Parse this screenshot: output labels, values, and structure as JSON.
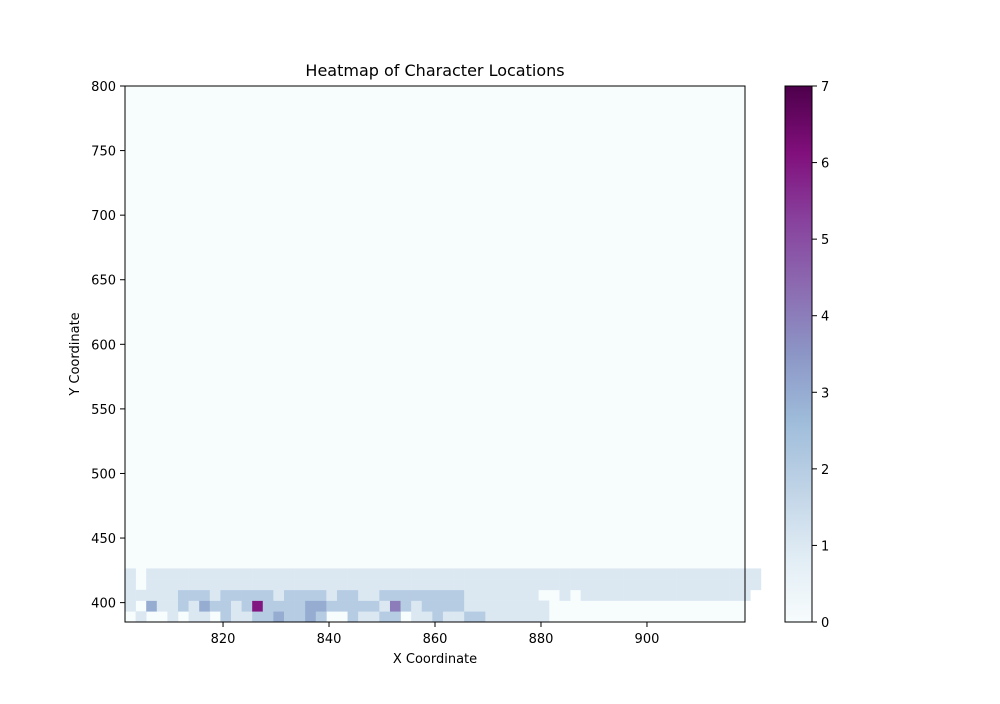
{
  "chart_data": {
    "type": "heatmap",
    "title": "Heatmap of Character Locations",
    "xlabel": "X Coordinate",
    "ylabel": "Y Coordinate",
    "xlim": [
      801.5,
      918.5
    ],
    "ylim": [
      385,
      800
    ],
    "x_ticks": [
      820,
      840,
      860,
      880,
      900
    ],
    "y_ticks": [
      400,
      450,
      500,
      550,
      600,
      650,
      700,
      750,
      800
    ],
    "x_tick_labels": [
      "820",
      "840",
      "860",
      "880",
      "900"
    ],
    "y_tick_labels": [
      "400",
      "450",
      "500",
      "550",
      "600",
      "650",
      "700",
      "750",
      "800"
    ],
    "colorbar": {
      "min": 0,
      "max": 7,
      "ticks": [
        0,
        1,
        2,
        3,
        4,
        5,
        6,
        7
      ],
      "tick_labels": [
        "0",
        "1",
        "2",
        "3",
        "4",
        "5",
        "6",
        "7"
      ],
      "colormap": "BuPu",
      "colors": [
        "#f7fcfd",
        "#e0ecf4",
        "#bfd3e6",
        "#9ebcda",
        "#8c96c6",
        "#8c6bb1",
        "#88419d",
        "#810f7c",
        "#4d004b"
      ]
    },
    "grid": false,
    "bins": {
      "x_start": 801.5,
      "x_step": 2,
      "y_start": 385,
      "y_step": 8.3,
      "nx": 60,
      "ny": 50
    },
    "cells": [
      [
        1,
        0,
        1
      ],
      [
        4,
        0,
        1
      ],
      [
        6,
        0,
        1
      ],
      [
        7,
        0,
        1
      ],
      [
        9,
        0,
        2
      ],
      [
        10,
        0,
        1
      ],
      [
        11,
        0,
        1
      ],
      [
        12,
        0,
        2
      ],
      [
        13,
        0,
        2
      ],
      [
        14,
        0,
        3
      ],
      [
        15,
        0,
        2
      ],
      [
        16,
        0,
        2
      ],
      [
        17,
        0,
        3
      ],
      [
        18,
        0,
        2
      ],
      [
        21,
        0,
        2
      ],
      [
        22,
        0,
        1
      ],
      [
        23,
        0,
        1
      ],
      [
        24,
        0,
        2
      ],
      [
        25,
        0,
        2
      ],
      [
        27,
        0,
        1
      ],
      [
        28,
        0,
        1
      ],
      [
        29,
        0,
        2
      ],
      [
        30,
        0,
        1
      ],
      [
        31,
        0,
        1
      ],
      [
        32,
        0,
        2
      ],
      [
        33,
        0,
        2
      ],
      [
        34,
        0,
        1
      ],
      [
        35,
        0,
        1
      ],
      [
        36,
        0,
        1
      ],
      [
        37,
        0,
        1
      ],
      [
        38,
        0,
        1
      ],
      [
        39,
        0,
        1
      ],
      [
        0,
        1,
        1
      ],
      [
        2,
        1,
        3
      ],
      [
        3,
        1,
        1
      ],
      [
        4,
        1,
        1
      ],
      [
        5,
        1,
        2
      ],
      [
        6,
        1,
        1
      ],
      [
        7,
        1,
        3
      ],
      [
        8,
        1,
        2
      ],
      [
        9,
        1,
        2
      ],
      [
        10,
        1,
        1
      ],
      [
        11,
        1,
        2
      ],
      [
        12,
        1,
        6
      ],
      [
        13,
        1,
        2
      ],
      [
        14,
        1,
        2
      ],
      [
        15,
        1,
        2
      ],
      [
        16,
        1,
        2
      ],
      [
        17,
        1,
        3
      ],
      [
        18,
        1,
        3
      ],
      [
        19,
        1,
        2
      ],
      [
        20,
        1,
        2
      ],
      [
        21,
        1,
        2
      ],
      [
        22,
        1,
        2
      ],
      [
        23,
        1,
        2
      ],
      [
        24,
        1,
        1
      ],
      [
        25,
        1,
        4
      ],
      [
        26,
        1,
        2
      ],
      [
        27,
        1,
        1
      ],
      [
        28,
        1,
        2
      ],
      [
        29,
        1,
        2
      ],
      [
        30,
        1,
        2
      ],
      [
        31,
        1,
        2
      ],
      [
        32,
        1,
        1
      ],
      [
        33,
        1,
        1
      ],
      [
        34,
        1,
        1
      ],
      [
        35,
        1,
        1
      ],
      [
        36,
        1,
        1
      ],
      [
        37,
        1,
        1
      ],
      [
        38,
        1,
        1
      ],
      [
        39,
        1,
        1
      ],
      [
        0,
        2,
        1
      ],
      [
        1,
        2,
        1
      ],
      [
        2,
        2,
        1
      ],
      [
        3,
        2,
        1
      ],
      [
        4,
        2,
        1
      ],
      [
        5,
        2,
        2
      ],
      [
        6,
        2,
        2
      ],
      [
        7,
        2,
        2
      ],
      [
        8,
        2,
        1
      ],
      [
        9,
        2,
        2
      ],
      [
        10,
        2,
        2
      ],
      [
        11,
        2,
        2
      ],
      [
        12,
        2,
        2
      ],
      [
        13,
        2,
        2
      ],
      [
        14,
        2,
        1
      ],
      [
        15,
        2,
        2
      ],
      [
        16,
        2,
        2
      ],
      [
        17,
        2,
        2
      ],
      [
        18,
        2,
        2
      ],
      [
        19,
        2,
        1
      ],
      [
        20,
        2,
        2
      ],
      [
        21,
        2,
        2
      ],
      [
        22,
        2,
        1
      ],
      [
        23,
        2,
        1
      ],
      [
        24,
        2,
        2
      ],
      [
        25,
        2,
        2
      ],
      [
        26,
        2,
        2
      ],
      [
        27,
        2,
        2
      ],
      [
        28,
        2,
        2
      ],
      [
        29,
        2,
        2
      ],
      [
        30,
        2,
        2
      ],
      [
        31,
        2,
        2
      ],
      [
        32,
        2,
        1
      ],
      [
        33,
        2,
        1
      ],
      [
        34,
        2,
        1
      ],
      [
        35,
        2,
        1
      ],
      [
        36,
        2,
        1
      ],
      [
        37,
        2,
        1
      ],
      [
        38,
        2,
        1
      ],
      [
        41,
        2,
        1
      ],
      [
        43,
        2,
        1
      ],
      [
        44,
        2,
        1
      ],
      [
        45,
        2,
        1
      ],
      [
        46,
        2,
        1
      ],
      [
        47,
        2,
        1
      ],
      [
        48,
        2,
        1
      ],
      [
        49,
        2,
        1
      ],
      [
        50,
        2,
        1
      ],
      [
        51,
        2,
        1
      ],
      [
        52,
        2,
        1
      ],
      [
        53,
        2,
        1
      ],
      [
        54,
        2,
        1
      ],
      [
        55,
        2,
        1
      ],
      [
        56,
        2,
        1
      ],
      [
        57,
        2,
        1
      ],
      [
        58,
        2,
        1
      ],
      [
        0,
        3,
        1
      ],
      [
        2,
        3,
        1
      ],
      [
        3,
        3,
        1
      ],
      [
        4,
        3,
        1
      ],
      [
        5,
        3,
        1
      ],
      [
        6,
        3,
        1
      ],
      [
        7,
        3,
        1
      ],
      [
        8,
        3,
        1
      ],
      [
        9,
        3,
        1
      ],
      [
        10,
        3,
        1
      ],
      [
        11,
        3,
        1
      ],
      [
        12,
        3,
        1
      ],
      [
        13,
        3,
        1
      ],
      [
        14,
        3,
        1
      ],
      [
        15,
        3,
        1
      ],
      [
        16,
        3,
        1
      ],
      [
        17,
        3,
        1
      ],
      [
        18,
        3,
        1
      ],
      [
        19,
        3,
        1
      ],
      [
        20,
        3,
        1
      ],
      [
        21,
        3,
        1
      ],
      [
        22,
        3,
        1
      ],
      [
        23,
        3,
        1
      ],
      [
        24,
        3,
        1
      ],
      [
        25,
        3,
        1
      ],
      [
        26,
        3,
        1
      ],
      [
        27,
        3,
        1
      ],
      [
        28,
        3,
        1
      ],
      [
        29,
        3,
        1
      ],
      [
        30,
        3,
        1
      ],
      [
        31,
        3,
        1
      ],
      [
        32,
        3,
        1
      ],
      [
        33,
        3,
        1
      ],
      [
        34,
        3,
        1
      ],
      [
        35,
        3,
        1
      ],
      [
        36,
        3,
        1
      ],
      [
        37,
        3,
        1
      ],
      [
        38,
        3,
        1
      ],
      [
        39,
        3,
        1
      ],
      [
        40,
        3,
        1
      ],
      [
        41,
        3,
        1
      ],
      [
        42,
        3,
        1
      ],
      [
        43,
        3,
        1
      ],
      [
        44,
        3,
        1
      ],
      [
        45,
        3,
        1
      ],
      [
        46,
        3,
        1
      ],
      [
        47,
        3,
        1
      ],
      [
        48,
        3,
        1
      ],
      [
        49,
        3,
        1
      ],
      [
        50,
        3,
        1
      ],
      [
        51,
        3,
        1
      ],
      [
        52,
        3,
        1
      ],
      [
        53,
        3,
        1
      ],
      [
        54,
        3,
        1
      ],
      [
        55,
        3,
        1
      ],
      [
        56,
        3,
        1
      ],
      [
        57,
        3,
        1
      ],
      [
        58,
        3,
        1
      ],
      [
        59,
        3,
        1
      ],
      [
        0,
        4,
        1
      ],
      [
        2,
        4,
        1
      ],
      [
        3,
        4,
        1
      ],
      [
        4,
        4,
        1
      ],
      [
        5,
        4,
        1
      ],
      [
        6,
        4,
        1
      ],
      [
        7,
        4,
        1
      ],
      [
        8,
        4,
        1
      ],
      [
        9,
        4,
        1
      ],
      [
        10,
        4,
        1
      ],
      [
        11,
        4,
        1
      ],
      [
        12,
        4,
        1
      ],
      [
        13,
        4,
        1
      ],
      [
        14,
        4,
        1
      ],
      [
        15,
        4,
        1
      ],
      [
        16,
        4,
        1
      ],
      [
        17,
        4,
        1
      ],
      [
        18,
        4,
        1
      ],
      [
        19,
        4,
        1
      ],
      [
        20,
        4,
        1
      ],
      [
        21,
        4,
        1
      ],
      [
        22,
        4,
        1
      ],
      [
        23,
        4,
        1
      ],
      [
        24,
        4,
        1
      ],
      [
        25,
        4,
        1
      ],
      [
        26,
        4,
        1
      ],
      [
        27,
        4,
        1
      ],
      [
        28,
        4,
        1
      ],
      [
        29,
        4,
        1
      ],
      [
        30,
        4,
        1
      ],
      [
        31,
        4,
        1
      ],
      [
        32,
        4,
        1
      ],
      [
        33,
        4,
        1
      ],
      [
        34,
        4,
        1
      ],
      [
        35,
        4,
        1
      ],
      [
        36,
        4,
        1
      ],
      [
        37,
        4,
        1
      ],
      [
        38,
        4,
        1
      ],
      [
        39,
        4,
        1
      ],
      [
        40,
        4,
        1
      ],
      [
        41,
        4,
        1
      ],
      [
        42,
        4,
        1
      ],
      [
        43,
        4,
        1
      ],
      [
        44,
        4,
        1
      ],
      [
        45,
        4,
        1
      ],
      [
        46,
        4,
        1
      ],
      [
        47,
        4,
        1
      ],
      [
        48,
        4,
        1
      ],
      [
        49,
        4,
        1
      ],
      [
        50,
        4,
        1
      ],
      [
        51,
        4,
        1
      ],
      [
        52,
        4,
        1
      ],
      [
        53,
        4,
        1
      ],
      [
        54,
        4,
        1
      ],
      [
        55,
        4,
        1
      ],
      [
        56,
        4,
        1
      ],
      [
        57,
        4,
        1
      ],
      [
        58,
        4,
        1
      ],
      [
        59,
        4,
        1
      ]
    ],
    "note_cells": "cells are [xbin, ybin, count]"
  }
}
